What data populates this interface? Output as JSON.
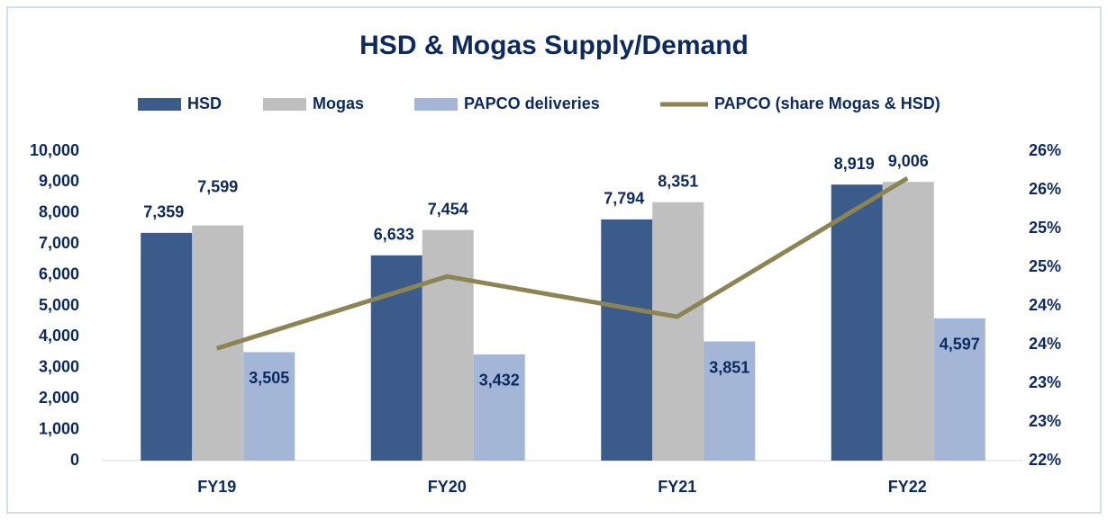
{
  "chart_data": {
    "type": "bar",
    "title": "HSD & Mogas Supply/Demand",
    "categories": [
      "FY19",
      "FY20",
      "FY21",
      "FY22"
    ],
    "series": [
      {
        "name": "HSD",
        "color": "#3b5b8b",
        "values": [
          7359,
          6633,
          7794,
          8919
        ],
        "value_labels": [
          "7,359",
          "6,633",
          "7,794",
          "8,919"
        ]
      },
      {
        "name": "Mogas",
        "color": "#bfbfbf",
        "values": [
          7599,
          7454,
          8351,
          9006
        ],
        "value_labels": [
          "7,599",
          "7,454",
          "8,351",
          "9,006"
        ]
      },
      {
        "name": "PAPCO deliveries",
        "color": "#a3b6d8",
        "values": [
          3505,
          3432,
          3851,
          4597
        ],
        "value_labels": [
          "3,505",
          "3,432",
          "3,851",
          "4,597"
        ]
      },
      {
        "name": "PAPCO (share Mogas & HSD)",
        "type": "line",
        "axis": "y2",
        "color": "#8c8452",
        "values": [
          23.45,
          24.38,
          23.86,
          25.65
        ]
      }
    ],
    "ylim": [
      0,
      10000
    ],
    "yticks": [
      0,
      {
        "value": 1000,
        "label": "1,000"
      },
      {
        "value": 2000,
        "label": "2,000"
      },
      {
        "value": 3000,
        "label": "3,000"
      },
      {
        "value": 4000,
        "label": "4,000"
      },
      {
        "value": 5000,
        "label": "5,000"
      },
      {
        "value": 6000,
        "label": "6,000"
      },
      {
        "value": 7000,
        "label": "7,000"
      },
      {
        "value": 8000,
        "label": "8,000"
      },
      {
        "value": 9000,
        "label": "9,000"
      },
      {
        "value": 10000,
        "label": "10,000"
      }
    ],
    "y2lim": [
      22,
      26
    ],
    "y2ticks": [
      {
        "value": 22,
        "label": "22%"
      },
      {
        "value": 22.5,
        "label": "23%"
      },
      {
        "value": 23,
        "label": "23%"
      },
      {
        "value": 23.5,
        "label": "24%"
      },
      {
        "value": 24,
        "label": "24%"
      },
      {
        "value": 24.5,
        "label": "25%"
      },
      {
        "value": 25,
        "label": "25%"
      },
      {
        "value": 25.5,
        "label": "26%"
      },
      {
        "value": 26,
        "label": "26%"
      }
    ],
    "grid": false,
    "legend": "top"
  }
}
